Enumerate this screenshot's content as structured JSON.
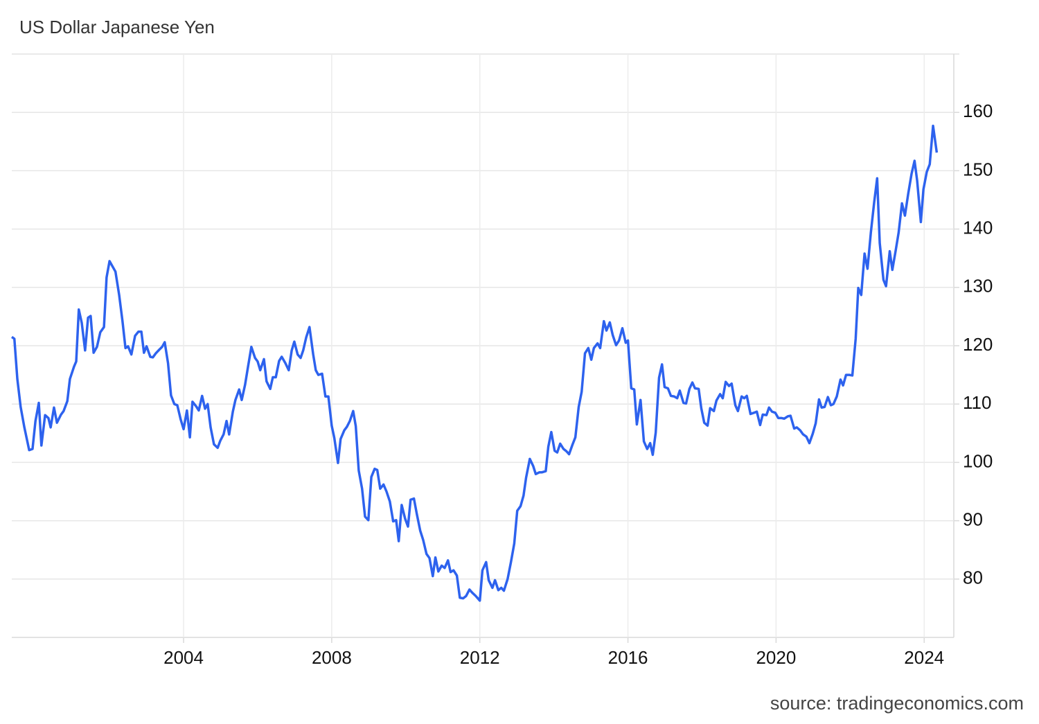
{
  "chart_data": {
    "type": "line",
    "title": "US Dollar Japanese Yen",
    "source": "source: tradingeconomics.com",
    "color": "#2d62ee",
    "grid": true,
    "y_axis_side": "right",
    "xlim": [
      1999.36,
      2024.8
    ],
    "xticks": [
      2004,
      2008,
      2012,
      2016,
      2020,
      2024
    ],
    "ylim": [
      70,
      170
    ],
    "yticks": [
      80,
      90,
      100,
      110,
      120,
      130,
      140,
      150,
      160
    ],
    "x": [
      1999.36,
      1999.43,
      1999.51,
      1999.6,
      1999.7,
      1999.83,
      1999.92,
      2000,
      2000.09,
      2000.16,
      2000.26,
      2000.35,
      2000.41,
      2000.5,
      2000.58,
      2000.69,
      2000.76,
      2000.86,
      2000.93,
      2001.04,
      2001.1,
      2001.17,
      2001.25,
      2001.34,
      2001.42,
      2001.49,
      2001.57,
      2001.66,
      2001.75,
      2001.85,
      2001.92,
      2002,
      2002.16,
      2002.26,
      2002.35,
      2002.43,
      2002.5,
      2002.59,
      2002.69,
      2002.78,
      2002.86,
      2002.93,
      2003,
      2003.1,
      2003.17,
      2003.25,
      2003.34,
      2003.42,
      2003.49,
      2003.58,
      2003.66,
      2003.75,
      2003.83,
      2003.92,
      2004,
      2004.09,
      2004.17,
      2004.24,
      2004.34,
      2004.41,
      2004.5,
      2004.58,
      2004.65,
      2004.73,
      2004.82,
      2004.92,
      2004.99,
      2005.08,
      2005.16,
      2005.23,
      2005.33,
      2005.4,
      2005.5,
      2005.57,
      2005.66,
      2005.74,
      2005.83,
      2005.93,
      2006,
      2006.07,
      2006.17,
      2006.24,
      2006.34,
      2006.41,
      2006.49,
      2006.58,
      2006.65,
      2006.75,
      2006.84,
      2006.92,
      2006.99,
      2007.08,
      2007.16,
      2007.23,
      2007.31,
      2007.4,
      2007.5,
      2007.57,
      2007.64,
      2007.74,
      2007.83,
      2007.91,
      2008,
      2008.07,
      2008.17,
      2008.24,
      2008.34,
      2008.41,
      2008.49,
      2008.58,
      2008.65,
      2008.73,
      2008.82,
      2008.9,
      2008.99,
      2009.07,
      2009.16,
      2009.23,
      2009.31,
      2009.4,
      2009.48,
      2009.57,
      2009.66,
      2009.74,
      2009.81,
      2009.89,
      2009.98,
      2010.06,
      2010.13,
      2010.22,
      2010.3,
      2010.39,
      2010.47,
      2010.56,
      2010.64,
      2010.73,
      2010.8,
      2010.88,
      2010.97,
      2011.05,
      2011.14,
      2011.21,
      2011.29,
      2011.38,
      2011.46,
      2011.55,
      2011.63,
      2011.72,
      2011.79,
      2011.89,
      2012,
      2012.07,
      2012.17,
      2012.24,
      2012.34,
      2012.41,
      2012.5,
      2012.58,
      2012.65,
      2012.75,
      2012.84,
      2012.93,
      2013.01,
      2013.1,
      2013.18,
      2013.25,
      2013.35,
      2013.44,
      2013.51,
      2013.61,
      2013.68,
      2013.78,
      2013.85,
      2013.93,
      2014.02,
      2014.09,
      2014.17,
      2014.26,
      2014.34,
      2014.41,
      2014.5,
      2014.58,
      2014.67,
      2014.75,
      2014.84,
      2014.93,
      2015.01,
      2015.08,
      2015.18,
      2015.25,
      2015.35,
      2015.42,
      2015.51,
      2015.59,
      2015.68,
      2015.76,
      2015.85,
      2015.94,
      2016,
      2016.09,
      2016.17,
      2016.24,
      2016.34,
      2016.43,
      2016.52,
      2016.6,
      2016.67,
      2016.75,
      2016.84,
      2016.92,
      2016.99,
      2017.08,
      2017.16,
      2017.25,
      2017.33,
      2017.4,
      2017.5,
      2017.57,
      2017.66,
      2017.74,
      2017.81,
      2017.91,
      2017.98,
      2018.06,
      2018.15,
      2018.22,
      2018.32,
      2018.39,
      2018.49,
      2018.56,
      2018.64,
      2018.73,
      2018.8,
      2018.9,
      2018.97,
      2019.07,
      2019.14,
      2019.21,
      2019.31,
      2019.4,
      2019.48,
      2019.57,
      2019.64,
      2019.74,
      2019.81,
      2019.89,
      2019.98,
      2020.06,
      2020.15,
      2020.22,
      2020.32,
      2020.39,
      2020.49,
      2020.56,
      2020.65,
      2020.73,
      2020.82,
      2020.9,
      2020.99,
      2021.07,
      2021.16,
      2021.23,
      2021.31,
      2021.4,
      2021.48,
      2021.55,
      2021.64,
      2021.74,
      2021.81,
      2021.89,
      2021.98,
      2022.06,
      2022.15,
      2022.22,
      2022.3,
      2022.39,
      2022.47,
      2022.56,
      2022.65,
      2022.73,
      2022.8,
      2022.9,
      2022.97,
      2023.07,
      2023.14,
      2023.23,
      2023.31,
      2023.4,
      2023.48,
      2023.57,
      2023.66,
      2023.74,
      2023.81,
      2023.91,
      2023.98,
      2024.07,
      2024.15,
      2024.24,
      2024.34
    ],
    "values": [
      121.5,
      121.2,
      114.3,
      109.5,
      106,
      102.1,
      102.3,
      107.1,
      110.2,
      102.9,
      108.1,
      107.6,
      106,
      109.4,
      106.8,
      108.2,
      108.8,
      110.5,
      114.3,
      116.4,
      117.3,
      126.2,
      123.9,
      119.2,
      124.8,
      125.1,
      118.8,
      119.8,
      122.3,
      123.2,
      131.7,
      134.5,
      132.7,
      128.7,
      124.2,
      119.6,
      119.9,
      118.5,
      121.7,
      122.4,
      122.4,
      118.8,
      119.9,
      118.1,
      118,
      118.7,
      119.3,
      119.8,
      120.6,
      117,
      111.5,
      110,
      109.8,
      107.4,
      105.7,
      108.9,
      104.3,
      110.4,
      109.6,
      108.9,
      111.4,
      109.2,
      110,
      106,
      103.1,
      102.5,
      103.7,
      104.8,
      107.1,
      104.8,
      108.7,
      110.7,
      112.5,
      110.7,
      113.3,
      116.4,
      119.8,
      117.9,
      117.3,
      115.8,
      117.7,
      113.9,
      112.6,
      114.6,
      114.6,
      117.4,
      118.1,
      117,
      115.8,
      119.2,
      120.7,
      118.5,
      117.9,
      119.2,
      121.4,
      123.2,
      118.5,
      115.8,
      115,
      115.2,
      111.3,
      111.3,
      106.3,
      104.2,
      99.9,
      104,
      105.5,
      106.1,
      107.1,
      108.8,
      106.2,
      98.6,
      95.5,
      90.7,
      90.1,
      97.5,
      98.9,
      98.7,
      95.5,
      96.2,
      95,
      93.3,
      89.9,
      90.1,
      86.5,
      92.7,
      90.4,
      89,
      93.6,
      93.8,
      91.1,
      88.3,
      86.7,
      84.3,
      83.6,
      80.5,
      83.7,
      81.3,
      82.3,
      81.9,
      83.2,
      81.2,
      81.5,
      80.6,
      76.8,
      76.7,
      77.1,
      78.2,
      77.7,
      77.1,
      76.3,
      81.5,
      82.9,
      79.8,
      78.5,
      79.8,
      78.1,
      78.5,
      78,
      80,
      82.9,
      86.1,
      91.7,
      92.5,
      94.3,
      97.4,
      100.6,
      99.4,
      98,
      98.3,
      98.3,
      98.5,
      102.7,
      105.2,
      102,
      101.7,
      103.2,
      102.3,
      101.9,
      101.4,
      103,
      104.3,
      109.5,
      112.1,
      118.7,
      119.6,
      117.6,
      119.6,
      120.4,
      119.6,
      124.2,
      122.6,
      124,
      121.8,
      120.1,
      120.9,
      123,
      120.5,
      120.9,
      112.7,
      112.5,
      106.5,
      110.7,
      103.6,
      102.3,
      103.3,
      101.3,
      105.1,
      114.5,
      116.8,
      112.9,
      112.7,
      111.4,
      111.3,
      111,
      112.3,
      110.2,
      110.1,
      112.6,
      113.7,
      112.7,
      112.6,
      109.3,
      106.8,
      106.3,
      109.3,
      108.8,
      110.6,
      111.7,
      111,
      113.8,
      113.1,
      113.5,
      109.8,
      108.8,
      111.3,
      111,
      111.4,
      108.3,
      108.5,
      108.7,
      106.4,
      108.2,
      108.1,
      109.4,
      108.7,
      108.5,
      107.6,
      107.6,
      107.5,
      107.9,
      108,
      105.8,
      106,
      105.5,
      104.8,
      104.4,
      103.3,
      104.9,
      106.7,
      110.8,
      109.4,
      109.5,
      111.2,
      109.8,
      110,
      111.3,
      114.2,
      113.2,
      115,
      115,
      114.9,
      121.2,
      129.9,
      128.7,
      135.8,
      133.2,
      139.4,
      144.6,
      148.7,
      137.6,
      131.3,
      130.2,
      136.2,
      133,
      136.3,
      139.4,
      144.4,
      142.3,
      146.1,
      149.5,
      151.7,
      148.3,
      141.2,
      146.8,
      149.8,
      151.1,
      157.7,
      153.1
    ]
  }
}
